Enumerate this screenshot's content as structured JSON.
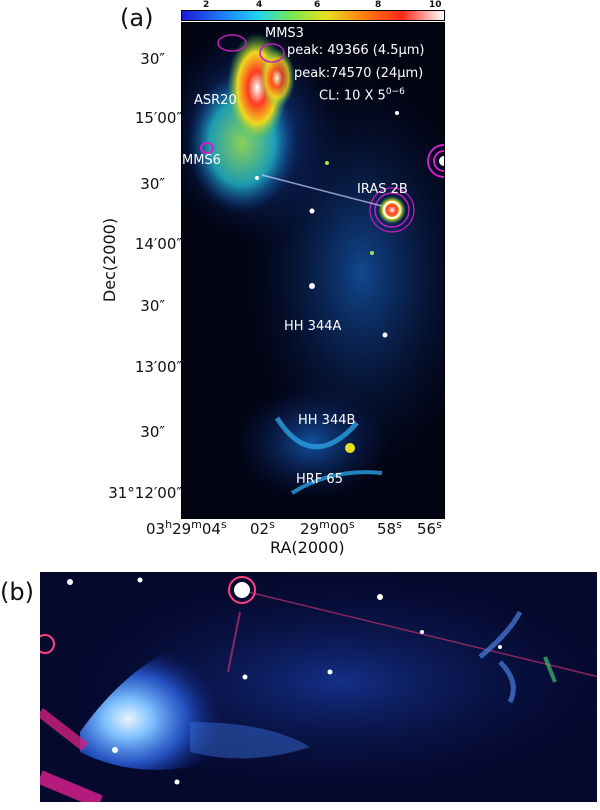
{
  "panel_a": {
    "label": "(a)",
    "colorbar": {
      "ticks": [
        "2",
        "4",
        "6",
        "8",
        "10"
      ]
    },
    "annotations": {
      "mms3": "MMS3",
      "peak1": "peak: 49366 (4.5μm)",
      "peak2": "peak:74570 (24μm)",
      "cl": "CL: 10  X 5",
      "cl_exp": "0−6",
      "asr20": "ASR20",
      "mms6": "MMS6",
      "iras": "IRAS 2B",
      "hh344a": "HH 344A",
      "hh344b": "HH 344B",
      "hrf65": "HRF 65"
    },
    "y_ticks": [
      "30″",
      "15′00″",
      "30″",
      "14′00″",
      "30″",
      "13′00″",
      "30″",
      "31°12′00″"
    ],
    "x_ticks": [
      "03h29m04s",
      "02s",
      "29m00s",
      "58s",
      "56s"
    ],
    "x_ticks_fmt": [
      [
        [
          "03",
          "n"
        ],
        [
          "h",
          "s"
        ],
        [
          "29",
          "n"
        ],
        [
          "m",
          "s"
        ],
        [
          "04",
          "n"
        ],
        [
          "s",
          "s"
        ]
      ],
      [
        [
          "02",
          "n"
        ],
        [
          "s",
          "s"
        ]
      ],
      [
        [
          "29",
          "n"
        ],
        [
          "m",
          "s"
        ],
        [
          "00",
          "n"
        ],
        [
          "s",
          "s"
        ]
      ],
      [
        [
          "58",
          "n"
        ],
        [
          "s",
          "s"
        ]
      ],
      [
        [
          "56",
          "n"
        ],
        [
          "s",
          "s"
        ]
      ]
    ],
    "xlabel": "RA(2000)",
    "ylabel": "Dec(2000)"
  },
  "panel_b": {
    "label": "(b)"
  }
}
